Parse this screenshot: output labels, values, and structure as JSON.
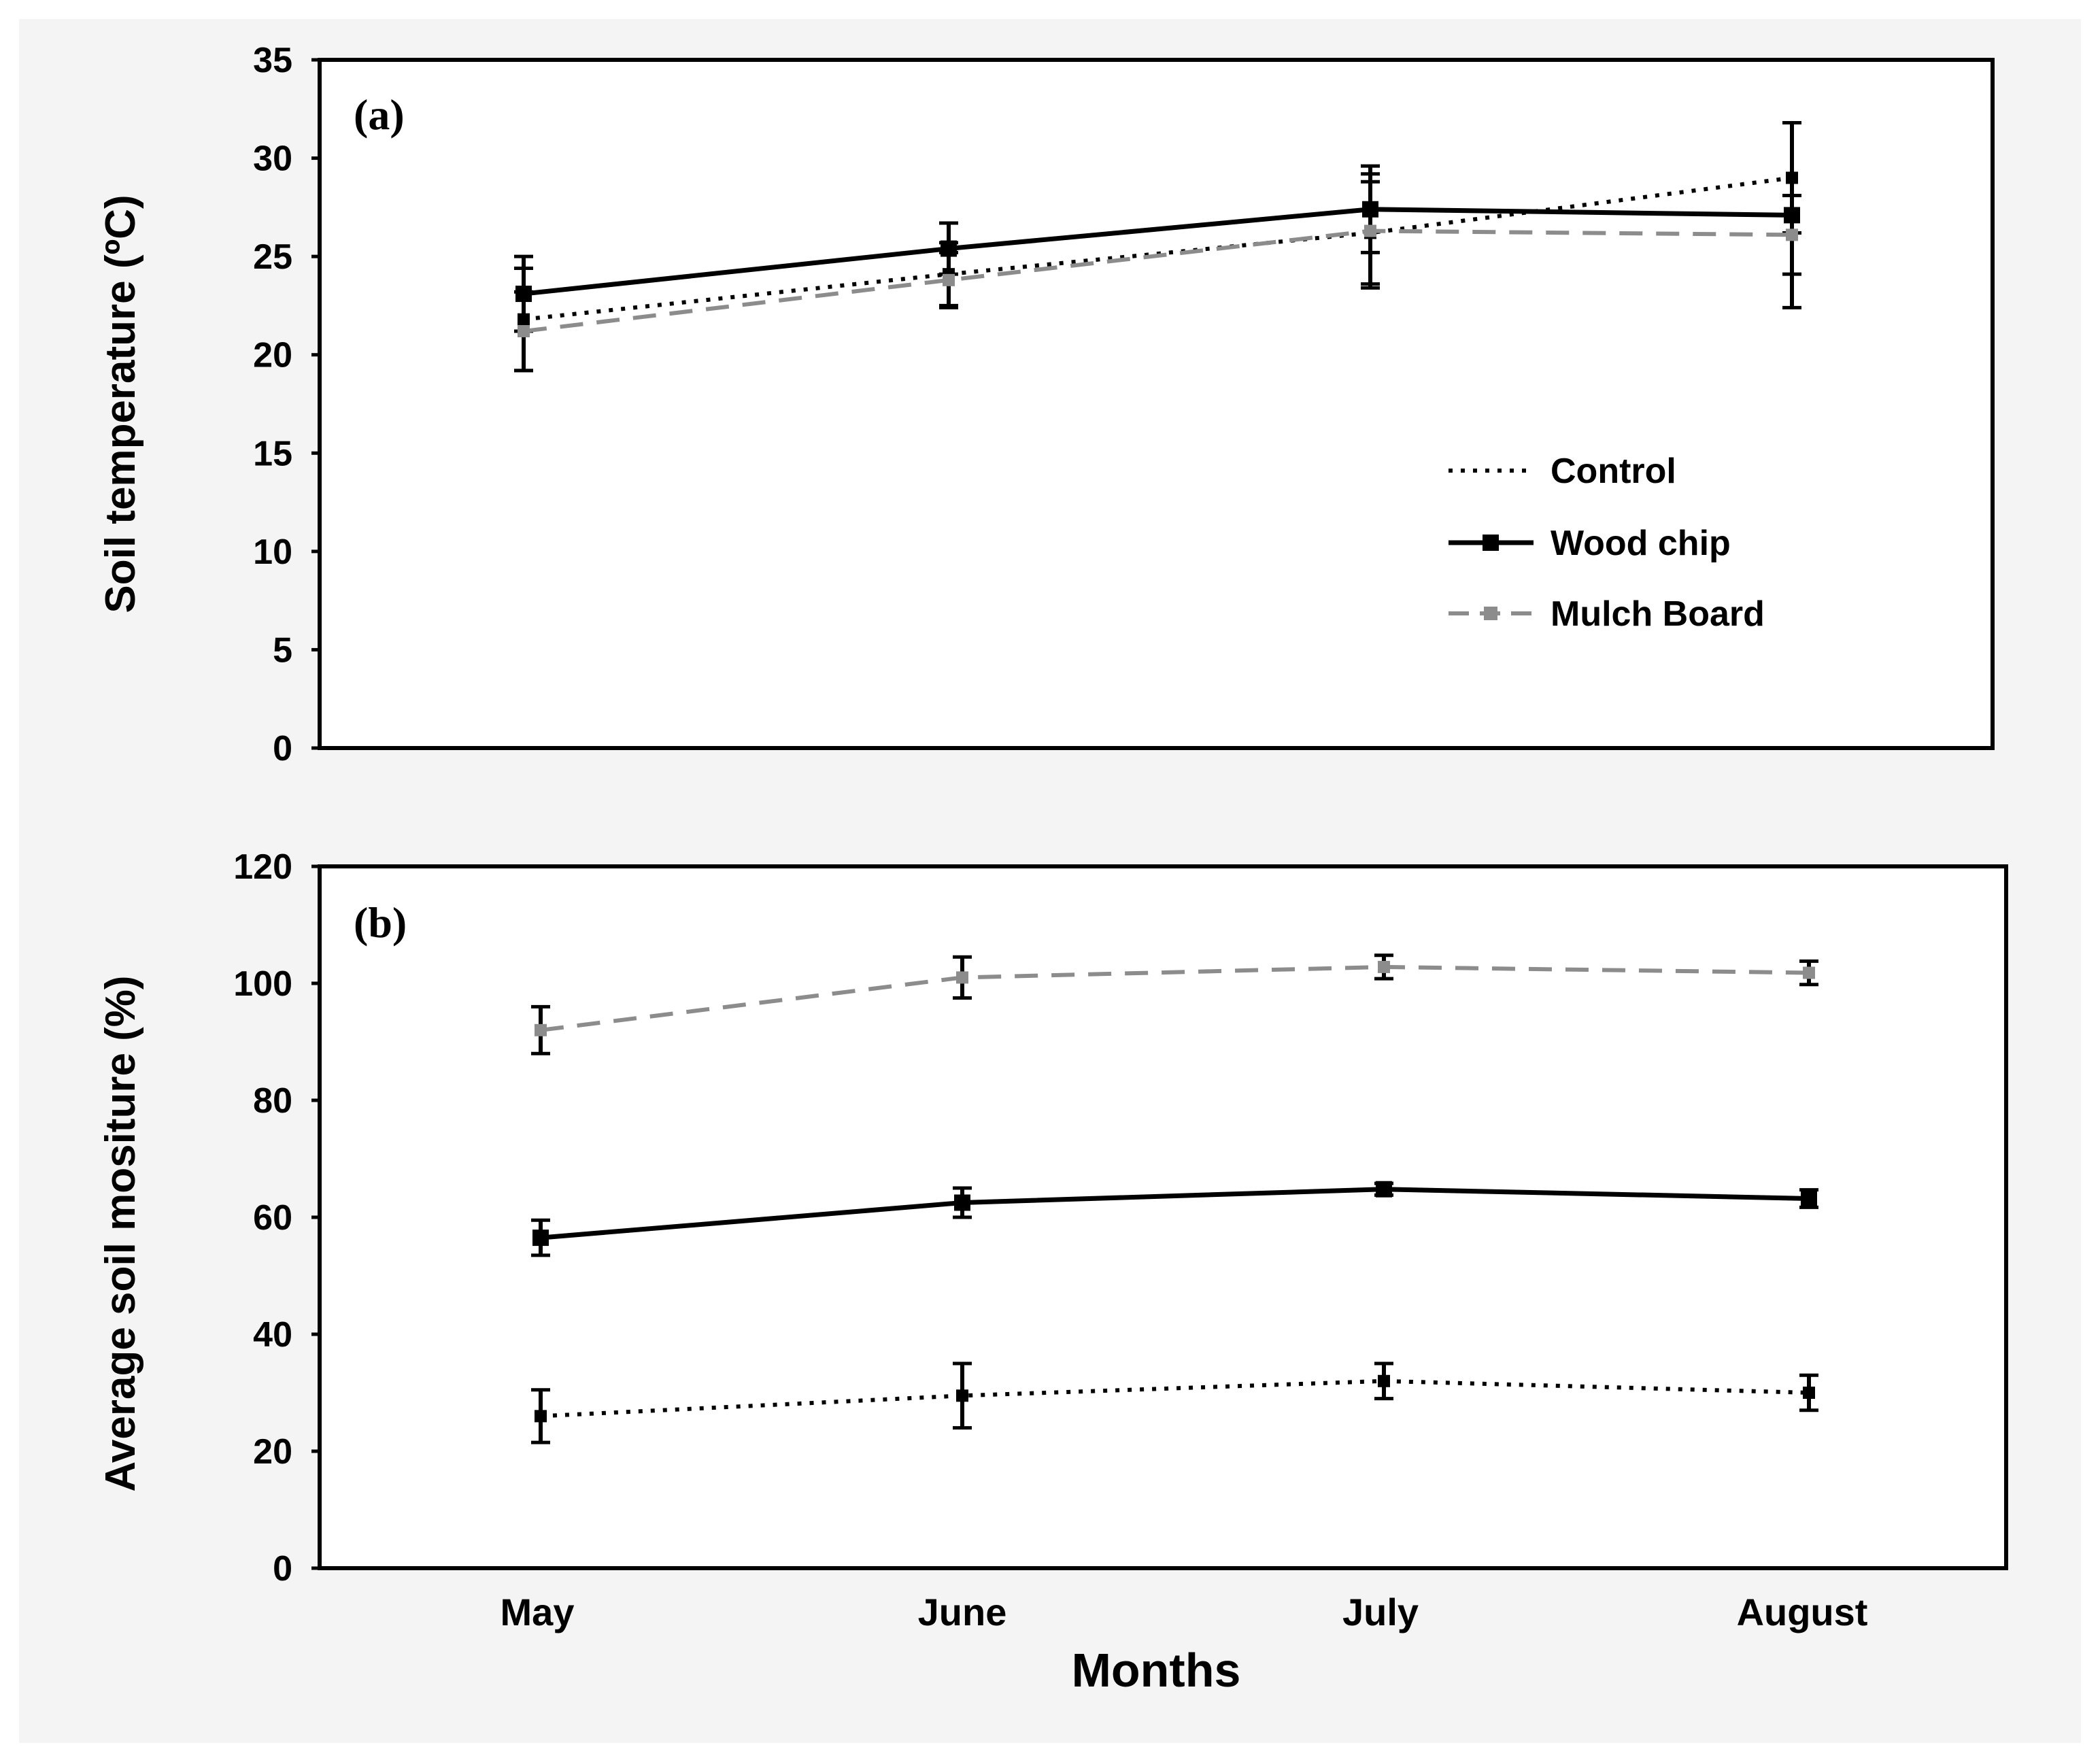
{
  "chart_data": [
    {
      "type": "line",
      "panel_label": "(a)",
      "ylabel": "Soil temperature (ºC)",
      "xlabel": "",
      "categories": [
        "May",
        "June",
        "July",
        "August"
      ],
      "ylim": [
        0,
        35
      ],
      "yticks": [
        "0",
        "5",
        "10",
        "15",
        "20",
        "25",
        "30",
        "35"
      ],
      "legend": {
        "placement": "middle-right",
        "entries": [
          "Control",
          "Wood chip",
          "Mulch Board"
        ]
      },
      "series": [
        {
          "name": "Control",
          "style": "dotted",
          "color": "#000000",
          "values": [
            21.8,
            24.1,
            26.2,
            29.0
          ],
          "errors": [
            2.6,
            1.6,
            2.6,
            2.8
          ]
        },
        {
          "name": "Wood chip",
          "style": "solid",
          "color": "#000000",
          "values": [
            23.1,
            25.4,
            27.4,
            27.1
          ],
          "errors": [
            1.9,
            1.3,
            2.2,
            4.7
          ]
        },
        {
          "name": "Mulch Board",
          "style": "dashed",
          "color": "#8c8c8c",
          "values": [
            21.2,
            23.8,
            26.3,
            26.1
          ],
          "errors": [
            2.0,
            1.4,
            2.9,
            2.0
          ]
        }
      ]
    },
    {
      "type": "line",
      "panel_label": "(b)",
      "ylabel": "Average soil mositure (%)",
      "xlabel": "Months",
      "categories": [
        "May",
        "June",
        "July",
        "August"
      ],
      "ylim": [
        0,
        120
      ],
      "yticks": [
        "0",
        "20",
        "40",
        "60",
        "80",
        "100",
        "120"
      ],
      "series": [
        {
          "name": "Control",
          "style": "dotted",
          "color": "#000000",
          "values": [
            26.0,
            29.5,
            32.0,
            30.0
          ],
          "errors": [
            4.5,
            5.5,
            3.0,
            3.0
          ]
        },
        {
          "name": "Wood chip",
          "style": "solid",
          "color": "#000000",
          "values": [
            56.5,
            62.5,
            64.8,
            63.2
          ],
          "errors": [
            3.0,
            2.5,
            1.0,
            1.5
          ]
        },
        {
          "name": "Mulch Board",
          "style": "dashed",
          "color": "#8c8c8c",
          "values": [
            92.0,
            101.0,
            102.8,
            101.8
          ],
          "errors": [
            4.0,
            3.5,
            2.0,
            2.0
          ]
        }
      ]
    }
  ]
}
